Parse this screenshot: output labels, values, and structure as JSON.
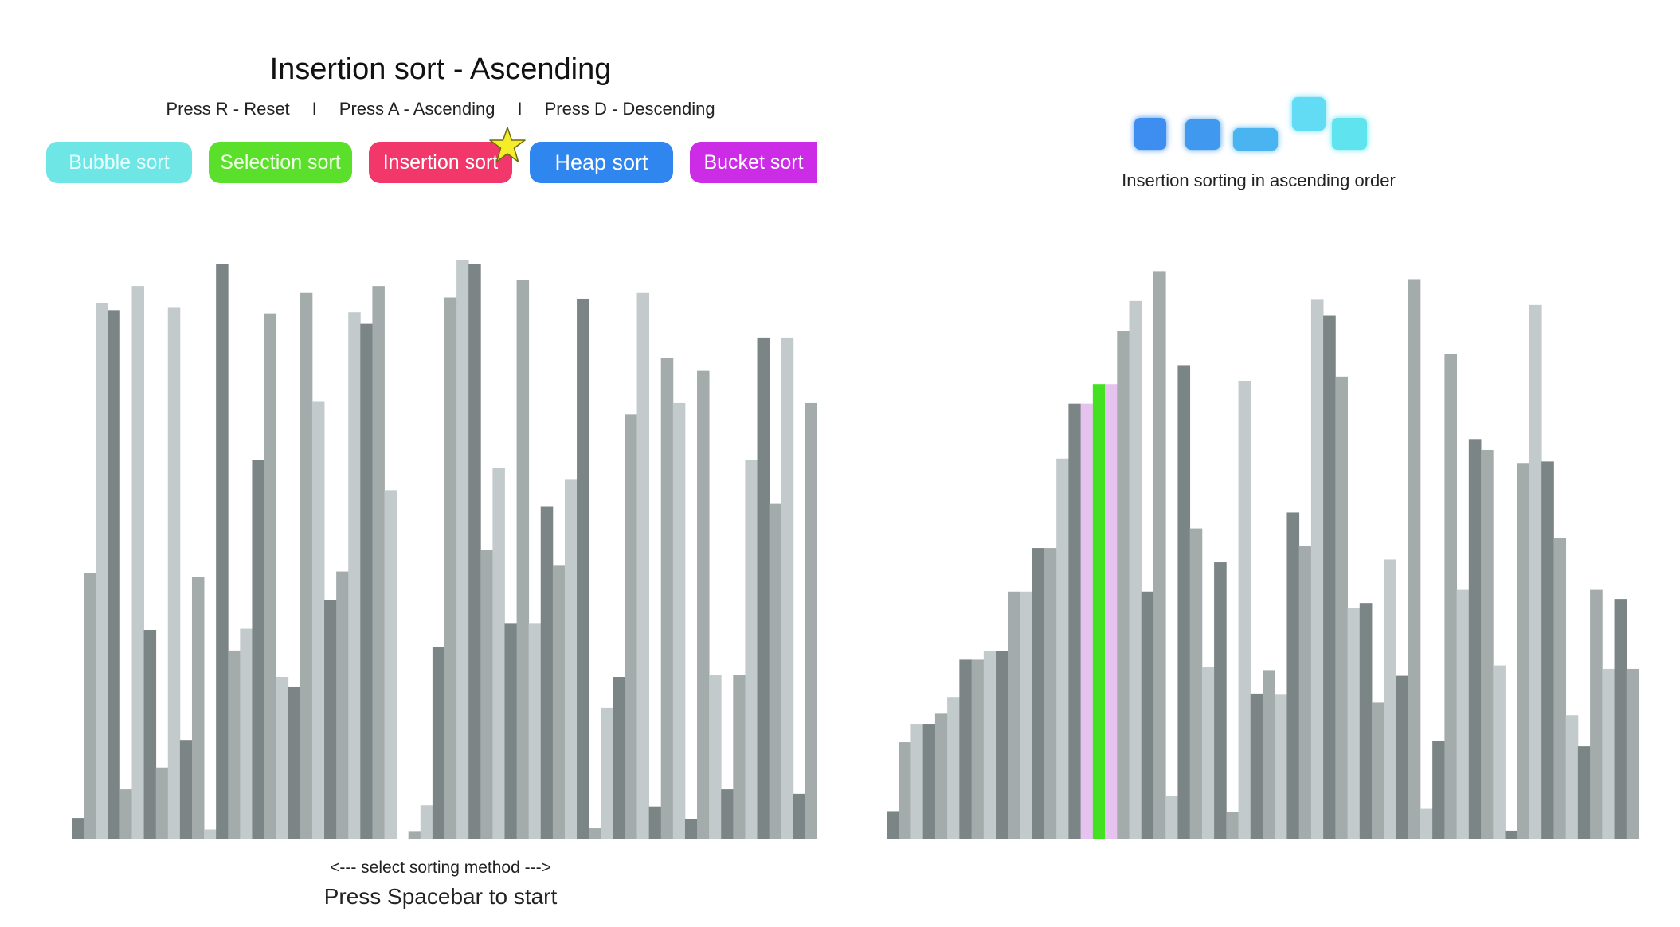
{
  "header": {
    "title": "Insertion sort - Ascending",
    "hints": [
      "Press R - Reset",
      "Press A - Ascending",
      "Press D - Descending"
    ],
    "separator": "I"
  },
  "tabs": [
    {
      "label": "Bubble sort",
      "color": "#6ee6e6"
    },
    {
      "label": "Selection sort",
      "color": "#5ae02a"
    },
    {
      "label": "Insertion sort",
      "color": "#f2386b",
      "selected": true
    },
    {
      "label": "Heap sort",
      "color": "#2f86ee"
    },
    {
      "label": "Bucket sort",
      "color": "#cc2ce6"
    }
  ],
  "selected_marker_icon": "star-icon",
  "logo": {
    "icon": "sorting-squares-icon",
    "caption": "Insertion sorting in ascending order"
  },
  "footer": {
    "nav_hint": "<--- select sorting method --->",
    "start_hint": "Press Spacebar to start"
  },
  "colors": {
    "bar_shades": [
      "#7b8585",
      "#a3abab",
      "#c2cacb"
    ],
    "compare_highlight": "#e6c3ee",
    "current_highlight": "#44e022"
  },
  "chart_data": [
    {
      "type": "bar",
      "name": "unsorted-array",
      "values": [
        3.6,
        46.4,
        93.4,
        92.2,
        8.6,
        96.4,
        36.4,
        12.4,
        92.6,
        17.2,
        45.6,
        1.6,
        100.2,
        32.8,
        36.6,
        66.0,
        91.6,
        28.2,
        26.4,
        95.2,
        76.2,
        41.6,
        46.6,
        91.8,
        89.8,
        96.4,
        60.8,
        0,
        1.2,
        5.8,
        33.4,
        94.4,
        101.0,
        100.2,
        50.4,
        64.6,
        37.6,
        97.4,
        37.6,
        58.0,
        47.6,
        62.6,
        94.2,
        1.8,
        22.8,
        28.2,
        74.0,
        95.2,
        5.6,
        83.8,
        76.0,
        3.4,
        81.6,
        28.6,
        8.6,
        28.6,
        66.0,
        87.4,
        58.4,
        87.4,
        7.8,
        76.0
      ],
      "ylim": [
        0,
        101.0
      ]
    },
    {
      "type": "bar",
      "name": "partially-sorted-array",
      "values": [
        4.8,
        16.8,
        20.0,
        20.0,
        21.9,
        24.7,
        31.2,
        31.2,
        32.7,
        32.7,
        43.1,
        43.1,
        50.7,
        50.7,
        66.3,
        75.9,
        75.9,
        79.3,
        79.3,
        88.6,
        93.8,
        43.1,
        99.0,
        7.4,
        82.6,
        54.1,
        30.0,
        48.2,
        4.6,
        79.8,
        25.3,
        29.4,
        25.1,
        56.9,
        51.1,
        94.0,
        91.2,
        80.6,
        40.2,
        41.1,
        23.7,
        48.7,
        28.4,
        97.6,
        5.2,
        17.0,
        84.5,
        43.4,
        69.7,
        67.8,
        30.2,
        1.4,
        65.4,
        93.1,
        65.8,
        52.5,
        21.5,
        16.1,
        43.4,
        29.6,
        41.8,
        29.6
      ],
      "ylim": [
        0,
        101.0
      ],
      "compare_indices": [
        16,
        18
      ],
      "current_index": 17
    }
  ]
}
